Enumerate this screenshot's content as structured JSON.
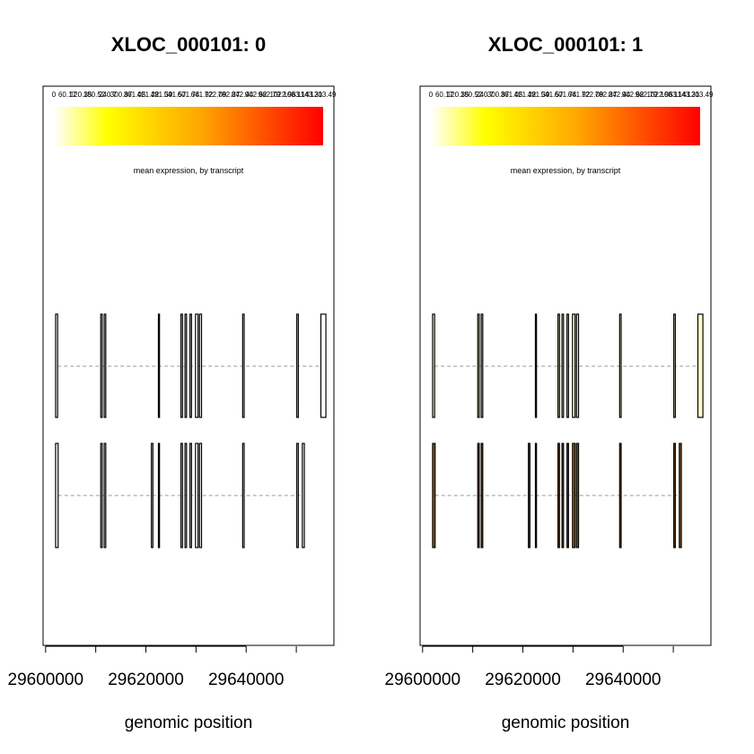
{
  "chart_data": [
    {
      "type": "exon-structure",
      "title": "XLOC_000101: 0",
      "xlabel": "genomic position",
      "xticks": [
        29600000,
        29620000,
        29640000
      ],
      "xlim": [
        29599500,
        29657500
      ],
      "colorbar": {
        "label": "mean expression, by transcript",
        "tick_labels": [
          "0",
          "60.17",
          "120.35",
          "180.52",
          "240.7",
          "300.87",
          "361.05",
          "421.22",
          "481.39",
          "541.57",
          "601.74",
          "661.92",
          "722.09",
          "782.27",
          "842.44",
          "902.62",
          "962.79",
          "1022.96",
          "1083.14",
          "1143.31",
          "1203.49"
        ],
        "colors": [
          "#ffffff",
          "#ffff00",
          "#ffa500",
          "#ff0000"
        ]
      },
      "transcripts": [
        {
          "name": "",
          "color": "#ffffff",
          "exons": [
            [
              29602000,
              29602400
            ],
            [
              29611000,
              29611300
            ],
            [
              29611700,
              29612000
            ],
            [
              29622500,
              29622700
            ],
            [
              29627000,
              29627300
            ],
            [
              29627800,
              29628100
            ],
            [
              29628800,
              29629100
            ],
            [
              29629900,
              29630400
            ],
            [
              29630700,
              29631100
            ],
            [
              29639300,
              29639600
            ],
            [
              29650100,
              29650400
            ],
            [
              29654900,
              29655900
            ]
          ]
        },
        {
          "name": "",
          "color": "#ffffff",
          "exons": [
            [
              29602000,
              29602500
            ],
            [
              29611000,
              29611300
            ],
            [
              29611700,
              29612000
            ],
            [
              29621100,
              29621400
            ],
            [
              29622500,
              29622700
            ],
            [
              29627000,
              29627300
            ],
            [
              29627800,
              29628100
            ],
            [
              29628800,
              29629100
            ],
            [
              29629900,
              29630400
            ],
            [
              29630700,
              29631100
            ],
            [
              29639300,
              29639600
            ],
            [
              29650100,
              29650400
            ],
            [
              29651200,
              29651600
            ]
          ]
        }
      ]
    },
    {
      "type": "exon-structure",
      "title": "XLOC_000101: 1",
      "xlabel": "genomic position",
      "xticks": [
        29600000,
        29620000,
        29640000
      ],
      "xlim": [
        29599500,
        29657500
      ],
      "colorbar": {
        "label": "mean expression, by transcript",
        "tick_labels": [
          "0",
          "60.17",
          "120.35",
          "180.52",
          "240.7",
          "300.87",
          "361.05",
          "421.22",
          "481.39",
          "541.57",
          "601.74",
          "661.92",
          "722.09",
          "782.27",
          "842.44",
          "902.62",
          "962.79",
          "1022.96",
          "1083.14",
          "1143.31",
          "1203.49"
        ],
        "colors": [
          "#ffffff",
          "#ffff00",
          "#ffa500",
          "#ff0000"
        ]
      },
      "transcripts": [
        {
          "name": "",
          "color": "#ffffcc",
          "exons": [
            [
              29602000,
              29602400
            ],
            [
              29611000,
              29611300
            ],
            [
              29611700,
              29612000
            ],
            [
              29622500,
              29622700
            ],
            [
              29627000,
              29627300
            ],
            [
              29627800,
              29628100
            ],
            [
              29628800,
              29629100
            ],
            [
              29629900,
              29630400
            ],
            [
              29630700,
              29631100
            ],
            [
              29639300,
              29639600
            ],
            [
              29650100,
              29650400
            ],
            [
              29654900,
              29655900
            ]
          ]
        },
        {
          "name": "",
          "color": "#8b5a1a",
          "exons": [
            [
              29602000,
              29602500
            ],
            [
              29611000,
              29611300
            ],
            [
              29611700,
              29612000
            ],
            [
              29621100,
              29621400
            ],
            [
              29622500,
              29622700
            ],
            [
              29627000,
              29627300
            ],
            [
              29627800,
              29628100
            ],
            [
              29628800,
              29629100
            ],
            [
              29629900,
              29630400
            ],
            [
              29630700,
              29631100
            ],
            [
              29639300,
              29639600
            ],
            [
              29650100,
              29650400
            ],
            [
              29651200,
              29651600
            ]
          ]
        }
      ]
    }
  ]
}
